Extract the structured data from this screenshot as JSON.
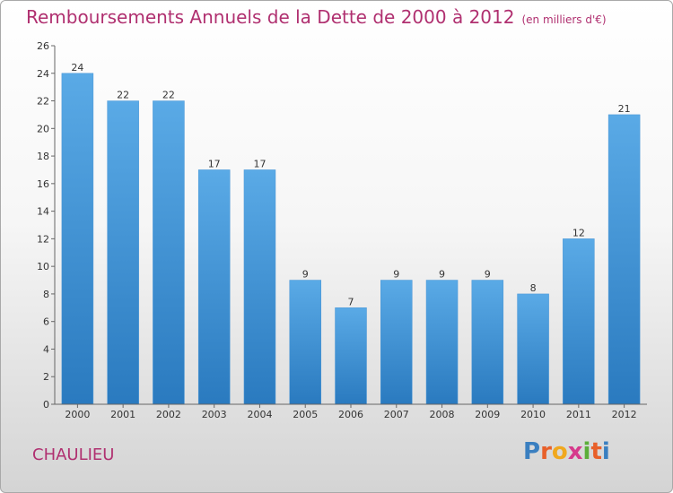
{
  "header": {
    "title": "Remboursements Annuels de la Dette de 2000 à 2012",
    "subtitle": "(en milliers d'€)"
  },
  "footer": {
    "commune": "CHAULIEU",
    "logo_text": "Proxiti",
    "logo_colors": [
      "#3a7fc0",
      "#e8602a",
      "#f0a81e",
      "#d63a8c",
      "#5cae3a",
      "#e8602a",
      "#3a7fc0"
    ]
  },
  "colors": {
    "bar": "#5aaae6",
    "bar_dark": "#2a7abf",
    "title": "#b03070",
    "axis": "#555555"
  },
  "chart_data": {
    "type": "bar",
    "title": "Remboursements Annuels de la Dette de 2000 à 2012",
    "subtitle": "(en milliers d'€)",
    "xlabel": "",
    "ylabel": "",
    "categories": [
      "2000",
      "2001",
      "2002",
      "2003",
      "2004",
      "2005",
      "2006",
      "2007",
      "2008",
      "2009",
      "2010",
      "2011",
      "2012"
    ],
    "values": [
      24,
      22,
      22,
      17,
      17,
      9,
      7,
      9,
      9,
      9,
      8,
      12,
      21
    ],
    "data_labels": [
      "24",
      "22",
      "22",
      "17",
      "17",
      "9",
      "7",
      "9",
      "9",
      "9",
      "8",
      "12",
      "21"
    ],
    "ylim": [
      0,
      26
    ],
    "yticks": [
      "0",
      "2",
      "4",
      "6",
      "8",
      "10",
      "12",
      "14",
      "16",
      "18",
      "20",
      "22",
      "24",
      "26"
    ],
    "grid": false,
    "legend": "none"
  }
}
